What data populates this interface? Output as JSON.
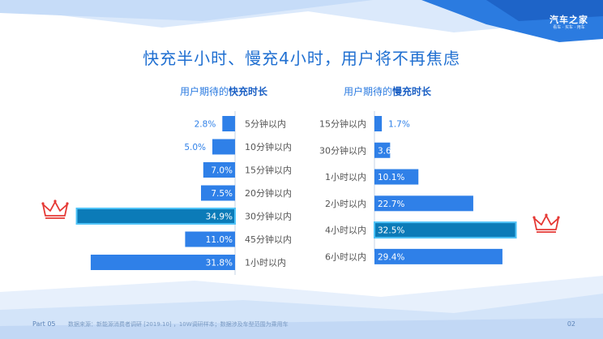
{
  "title": "快充半小时、慢充4小时，用户将不再焦虑",
  "logo": {
    "main": "汽车之家",
    "sub": "看车 · 买车 · 用车"
  },
  "chart_data": [
    {
      "type": "bar",
      "orientation": "horizontal",
      "title_prefix": "用户期待的",
      "title_highlight": "快充时长",
      "categories": [
        "5分钟以内",
        "10分钟以内",
        "15分钟以内",
        "20分钟以内",
        "30分钟以内",
        "45分钟以内",
        "1小时以内"
      ],
      "values": [
        2.8,
        5.0,
        7.0,
        7.5,
        34.9,
        11.0,
        31.8
      ],
      "labels": [
        "2.8%",
        "5.0%",
        "7.0%",
        "7.5%",
        "34.9%",
        "11.0%",
        "31.8%"
      ],
      "highlight_index": 4,
      "xlim": [
        0,
        35
      ]
    },
    {
      "type": "bar",
      "orientation": "horizontal",
      "title_prefix": "用户期待的",
      "title_highlight": "慢充时长",
      "categories": [
        "15分钟以内",
        "30分钟以内",
        "1小时以内",
        "2小时以内",
        "4小时以内",
        "6小时以内"
      ],
      "values": [
        1.7,
        3.6,
        10.1,
        22.7,
        32.5,
        29.4
      ],
      "labels": [
        "1.7%",
        "3.6%",
        "10.1%",
        "22.7%",
        "32.5%",
        "29.4%"
      ],
      "highlight_index": 4,
      "xlim": [
        0,
        35
      ]
    }
  ],
  "colors": {
    "bar": "#2f80e8",
    "highlight": "#0b7bb8",
    "highlight_border": "#4fc3f7",
    "title": "#1f6fd1",
    "crown": "#e53935"
  },
  "footer": {
    "part": "Part 05",
    "source": "数据来源：新能源消费者调研 [2019.10] ，10W调研样本；数据涉及车型范围为乘用车",
    "page": "02"
  }
}
